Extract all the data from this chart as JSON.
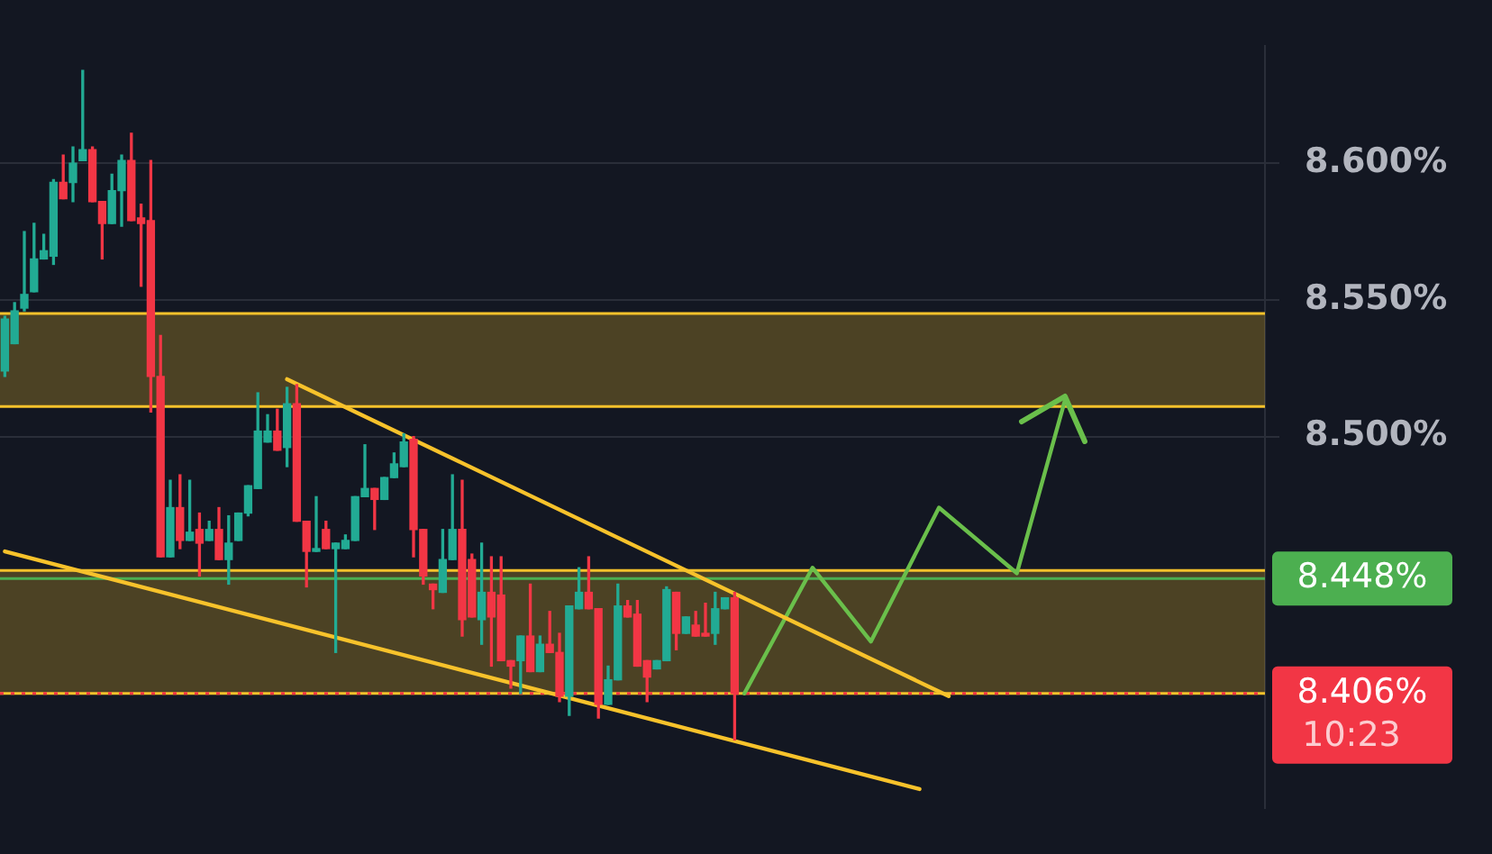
{
  "chart_data": {
    "type": "candlestick",
    "categories": [
      null,
      null,
      null,
      null,
      null,
      null,
      null,
      null,
      null,
      null,
      null,
      null,
      null,
      null,
      null,
      null,
      null,
      null,
      null,
      null,
      null,
      null,
      null,
      null,
      null,
      null,
      null,
      null,
      null,
      null,
      null,
      null,
      null,
      null,
      null,
      null,
      null,
      null,
      null,
      null,
      null,
      null,
      null,
      null,
      null,
      null,
      null,
      null,
      null,
      null,
      null,
      null,
      null,
      null,
      null,
      null,
      null,
      null,
      null,
      null,
      null,
      null,
      null,
      null,
      null,
      null,
      null,
      null,
      null,
      null,
      null,
      null,
      null,
      null,
      null,
      null,
      null,
      null,
      null,
      null,
      null,
      null,
      null,
      null,
      null,
      null,
      null,
      null,
      null,
      null,
      null,
      null,
      null,
      null,
      null,
      null,
      null,
      null,
      null,
      null,
      null,
      null,
      null,
      null,
      null,
      null,
      null,
      null,
      null,
      null,
      null,
      null,
      null,
      null,
      null,
      null,
      null,
      null,
      null,
      null,
      null,
      null,
      null,
      null,
      null,
      null,
      null,
      null,
      null,
      null
    ],
    "ohlc": [
      [
        8.524,
        8.544,
        8.522,
        8.543
      ],
      [
        8.534,
        8.549,
        8.534,
        8.546
      ],
      [
        8.547,
        8.575,
        8.546,
        8.552
      ],
      [
        8.553,
        8.578,
        8.553,
        8.565
      ],
      [
        8.565,
        8.574,
        8.565,
        8.568
      ],
      [
        8.566,
        8.594,
        8.563,
        8.593
      ],
      [
        8.593,
        8.603,
        8.587,
        8.587
      ],
      [
        8.593,
        8.606,
        8.586,
        8.6
      ],
      [
        8.601,
        8.634,
        8.601,
        8.605
      ],
      [
        8.605,
        8.606,
        8.586,
        8.586
      ],
      [
        8.586,
        8.586,
        8.565,
        8.578
      ],
      [
        8.578,
        8.596,
        8.578,
        8.59
      ],
      [
        8.59,
        8.603,
        8.577,
        8.601
      ],
      [
        8.601,
        8.611,
        8.579,
        8.579
      ],
      [
        8.58,
        8.585,
        8.555,
        8.578
      ],
      [
        8.579,
        8.601,
        8.509,
        8.522
      ],
      [
        8.522,
        8.537,
        8.456,
        8.456
      ],
      [
        8.456,
        8.484,
        8.456,
        8.474
      ],
      [
        8.474,
        8.486,
        8.459,
        8.462
      ],
      [
        8.462,
        8.484,
        8.462,
        8.465
      ],
      [
        8.466,
        8.472,
        8.449,
        8.461
      ],
      [
        8.462,
        8.469,
        8.462,
        8.466
      ],
      [
        8.466,
        8.474,
        8.455,
        8.455
      ],
      [
        8.455,
        8.471,
        8.446,
        8.461
      ],
      [
        8.462,
        8.472,
        8.462,
        8.472
      ],
      [
        8.472,
        8.482,
        8.471,
        8.482
      ],
      [
        8.481,
        8.516,
        8.481,
        8.502
      ],
      [
        8.498,
        8.508,
        8.498,
        8.502
      ],
      [
        8.502,
        8.51,
        8.495,
        8.495
      ],
      [
        8.496,
        8.518,
        8.489,
        8.512
      ],
      [
        8.512,
        8.519,
        8.469,
        8.469
      ],
      [
        8.469,
        8.469,
        8.445,
        8.458
      ],
      [
        8.458,
        8.478,
        8.458,
        8.459
      ],
      [
        8.466,
        8.469,
        8.459,
        8.459
      ],
      [
        8.459,
        8.461,
        8.421,
        8.461
      ],
      [
        8.459,
        8.464,
        8.459,
        8.462
      ],
      [
        8.462,
        8.478,
        8.462,
        8.478
      ],
      [
        8.478,
        8.497,
        8.478,
        8.481
      ],
      [
        8.481,
        8.481,
        8.466,
        8.477
      ],
      [
        8.477,
        8.485,
        8.477,
        8.485
      ],
      [
        8.485,
        8.494,
        8.485,
        8.49
      ],
      [
        8.489,
        8.501,
        8.489,
        8.498
      ],
      [
        8.499,
        8.5,
        8.456,
        8.466
      ],
      [
        8.466,
        8.466,
        8.446,
        8.449
      ],
      [
        8.446,
        8.446,
        8.437,
        8.444
      ],
      [
        8.443,
        8.466,
        8.443,
        8.455
      ],
      [
        8.455,
        8.486,
        8.455,
        8.466
      ],
      [
        8.466,
        8.484,
        8.427,
        8.433
      ],
      [
        8.455,
        8.457,
        8.434,
        8.434
      ],
      [
        8.433,
        8.461,
        8.424,
        8.443
      ],
      [
        8.443,
        8.456,
        8.416,
        8.434
      ],
      [
        8.442,
        8.456,
        8.418,
        8.418
      ],
      [
        8.418,
        8.418,
        8.408,
        8.416
      ],
      [
        8.418,
        8.427,
        8.406,
        8.427
      ],
      [
        8.427,
        8.446,
        8.414,
        8.414
      ],
      [
        8.414,
        8.427,
        8.414,
        8.424
      ],
      [
        8.424,
        8.436,
        8.421,
        8.421
      ],
      [
        8.421,
        8.428,
        8.403,
        8.405
      ],
      [
        8.405,
        8.438,
        8.398,
        8.438
      ],
      [
        8.437,
        8.452,
        8.437,
        8.443
      ],
      [
        8.443,
        8.456,
        8.437,
        8.437
      ],
      [
        8.437,
        8.437,
        8.397,
        8.402
      ],
      [
        8.402,
        8.416,
        8.402,
        8.411
      ],
      [
        8.411,
        8.446,
        8.411,
        8.438
      ],
      [
        8.438,
        8.44,
        8.434,
        8.434
      ],
      [
        8.435,
        8.44,
        8.416,
        8.416
      ],
      [
        8.418,
        8.418,
        8.403,
        8.412
      ],
      [
        8.415,
        8.418,
        8.415,
        8.418
      ],
      [
        8.418,
        8.445,
        8.418,
        8.444
      ],
      [
        8.443,
        8.443,
        8.422,
        8.428
      ],
      [
        8.428,
        8.434,
        8.428,
        8.434
      ],
      [
        8.431,
        8.436,
        8.427,
        8.427
      ],
      [
        8.428,
        8.439,
        8.427,
        8.427
      ],
      [
        8.428,
        8.443,
        8.424,
        8.437
      ],
      [
        8.437,
        8.441,
        8.437,
        8.441
      ],
      [
        8.441,
        8.443,
        8.389,
        8.406
      ],
      null,
      null,
      null,
      null,
      null,
      null,
      null,
      null,
      null,
      null,
      null,
      null,
      null,
      null,
      null,
      null,
      null,
      null,
      null,
      null,
      null,
      null,
      null,
      null,
      null,
      null,
      null,
      null,
      null,
      null,
      null,
      null,
      null,
      null,
      null,
      null,
      null,
      null,
      null,
      null,
      null,
      null,
      null,
      null,
      null,
      null,
      null,
      null,
      null,
      null,
      null,
      null,
      null,
      null
    ],
    "colors": [
      "#22ab94",
      "#22ab94",
      "#22ab94",
      "#22ab94",
      "#22ab94",
      "#22ab94",
      "#f23645",
      "#22ab94",
      "#22ab94",
      "#f23645",
      "#f23645",
      "#22ab94",
      "#22ab94",
      "#f23645",
      "#f23645",
      "#f23645",
      "#f23645",
      "#22ab94",
      "#f23645",
      "#22ab94",
      "#f23645",
      "#22ab94",
      "#f23645",
      "#22ab94",
      "#22ab94",
      "#22ab94",
      "#22ab94",
      "#22ab94",
      "#f23645",
      "#22ab94",
      "#f23645",
      "#f23645",
      "#22ab94",
      "#f23645",
      "#22ab94",
      "#22ab94",
      "#22ab94",
      "#22ab94",
      "#f23645",
      "#22ab94",
      "#22ab94",
      "#22ab94",
      "#f23645",
      "#f23645",
      "#f23645",
      "#22ab94",
      "#22ab94",
      "#f23645",
      "#f23645",
      "#22ab94",
      "#f23645",
      "#f23645",
      "#f23645",
      "#22ab94",
      "#f23645",
      "#22ab94",
      "#f23645",
      "#f23645",
      "#22ab94",
      "#22ab94",
      "#f23645",
      "#f23645",
      "#22ab94",
      "#22ab94",
      "#f23645",
      "#f23645",
      "#f23645",
      "#22ab94",
      "#22ab94",
      "#f23645",
      "#22ab94",
      "#f23645",
      "#f23645",
      "#22ab94",
      "#22ab94",
      "#f23645",
      null,
      null,
      null,
      null,
      null,
      null,
      null,
      null,
      null,
      null,
      null,
      null,
      null,
      null,
      null,
      null,
      null,
      null,
      null,
      null,
      null,
      null,
      null,
      null,
      null,
      null,
      null,
      null,
      null,
      null,
      null,
      null,
      null,
      null,
      null,
      null,
      null,
      null,
      null,
      null,
      null,
      null,
      null,
      null,
      null,
      null,
      null,
      null,
      null,
      null,
      null,
      null,
      null,
      null
    ],
    "series": [
      {
        "type": "line",
        "color": "#f7c22b",
        "values": [
          null,
          null,
          null,
          null,
          null,
          null,
          null,
          null,
          null,
          null,
          null,
          null,
          null,
          null,
          null,
          null,
          null,
          null,
          null,
          null,
          null,
          null,
          null,
          null,
          null,
          null,
          null,
          null,
          null,
          8.521,
          null,
          null,
          null,
          null,
          null,
          null,
          null,
          null,
          null,
          null,
          null,
          null,
          null,
          null,
          null,
          null,
          null,
          null,
          null,
          null,
          null,
          null,
          null,
          null,
          null,
          null,
          null,
          null,
          null,
          null,
          null,
          null,
          null,
          null,
          null,
          null,
          null,
          null,
          null,
          null,
          null,
          null,
          null,
          null,
          null,
          null,
          null,
          null,
          null,
          null,
          null,
          null,
          null,
          null,
          null,
          null,
          null,
          null,
          null,
          null,
          null,
          null,
          null,
          null,
          null,
          null,
          null,
          8.405,
          null,
          null,
          null,
          null,
          null,
          null,
          null,
          null,
          null,
          null,
          null,
          null,
          null,
          null,
          null,
          null,
          null,
          null,
          null,
          null,
          null,
          null,
          null,
          null,
          null,
          null,
          null,
          null,
          null,
          null,
          null,
          null
        ]
      },
      {
        "type": "line",
        "color": "#f7c22b",
        "values": [
          8.458,
          null,
          null,
          null,
          null,
          null,
          null,
          null,
          null,
          null,
          null,
          null,
          null,
          null,
          null,
          null,
          null,
          null,
          null,
          null,
          null,
          null,
          null,
          null,
          null,
          null,
          null,
          null,
          null,
          null,
          null,
          null,
          null,
          null,
          null,
          null,
          null,
          null,
          null,
          null,
          null,
          null,
          null,
          null,
          null,
          null,
          null,
          null,
          null,
          null,
          null,
          null,
          null,
          null,
          null,
          null,
          null,
          null,
          null,
          null,
          null,
          null,
          null,
          null,
          null,
          null,
          null,
          null,
          null,
          null,
          null,
          null,
          null,
          null,
          null,
          null,
          null,
          null,
          null,
          null,
          null,
          null,
          null,
          null,
          null,
          null,
          null,
          null,
          null,
          null,
          null,
          null,
          null,
          null,
          8.371,
          null,
          null,
          null,
          null,
          null,
          null,
          null,
          null,
          null,
          null,
          null,
          null,
          null,
          null,
          null,
          null,
          null,
          null,
          null,
          null,
          null,
          null,
          null,
          null,
          null,
          null,
          null,
          null,
          null,
          null,
          null,
          null,
          null,
          null,
          null
        ]
      },
      {
        "type": "line",
        "color": "#6abf4b",
        "values": [
          null,
          null,
          null,
          null,
          null,
          null,
          null,
          null,
          null,
          null,
          null,
          null,
          null,
          null,
          null,
          null,
          null,
          null,
          null,
          null,
          null,
          null,
          null,
          null,
          null,
          null,
          null,
          null,
          null,
          null,
          null,
          null,
          null,
          null,
          null,
          null,
          null,
          null,
          null,
          null,
          null,
          null,
          null,
          null,
          null,
          null,
          null,
          null,
          null,
          null,
          null,
          null,
          null,
          null,
          null,
          null,
          null,
          null,
          null,
          null,
          null,
          null,
          null,
          null,
          null,
          null,
          null,
          null,
          null,
          null,
          null,
          null,
          null,
          null,
          null,
          null,
          8.406,
          null,
          null,
          null,
          null,
          null,
          null,
          8.452,
          null,
          null,
          null,
          null,
          null,
          8.425,
          null,
          null,
          null,
          null,
          null,
          null,
          8.474,
          null,
          null,
          null,
          null,
          null,
          null,
          null,
          8.45,
          null,
          null,
          null,
          null,
          8.514,
          null,
          null,
          null,
          null,
          null,
          null,
          null,
          null,
          null,
          null,
          null,
          null,
          null,
          null,
          null,
          null,
          null,
          null,
          null,
          null
        ]
      }
    ],
    "ylim": [
      8.364,
      8.643
    ],
    "yticks": [
      {
        "value": 8.5,
        "label": "8.500%"
      },
      {
        "value": 8.55,
        "label": "8.550%"
      },
      {
        "value": 8.6,
        "label": "8.600%"
      }
    ],
    "grid": "y",
    "legend": false,
    "tick_labels": "y",
    "bands": [
      {
        "axis": "y",
        "from": 8.511,
        "to": 8.545,
        "color": "#f7c22b"
      },
      {
        "axis": "y",
        "from": 8.406,
        "to": 8.451,
        "color": "#f7c22b"
      }
    ],
    "ref_lines": [
      {
        "axis": "y",
        "value": 8.545,
        "color": "#f7c22b",
        "line_style": "solid"
      },
      {
        "axis": "y",
        "value": 8.511,
        "color": "#f7c22b",
        "line_style": "solid"
      },
      {
        "axis": "y",
        "value": 8.451,
        "color": "#f7c22b",
        "line_style": "solid"
      },
      {
        "axis": "y",
        "value": 8.406,
        "color": "#f7c22b",
        "line_style": "solid"
      },
      {
        "axis": "y",
        "value": 8.448,
        "label": "8.448%",
        "color": "#4caf50",
        "line_style": "solid"
      },
      {
        "axis": "y",
        "value": 8.406,
        "label": "8.406%",
        "color": "#f23645",
        "line_style": "dotted"
      }
    ],
    "annotations": [
      "10:23"
    ]
  }
}
